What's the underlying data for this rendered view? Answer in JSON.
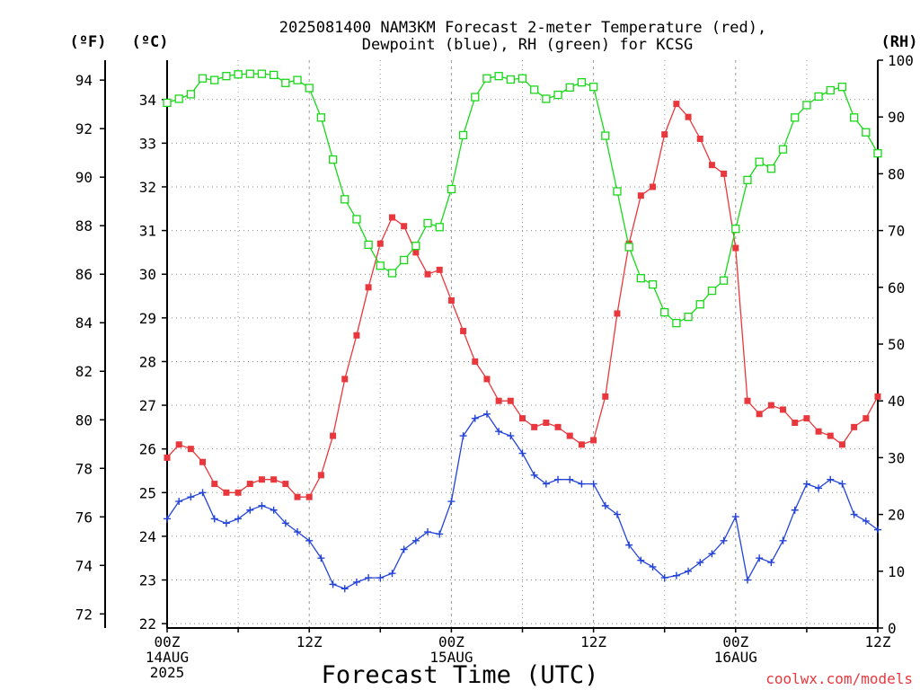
{
  "chart_data": {
    "type": "line",
    "title_line1": "2025081400 NAM3KM Forecast 2-meter Temperature (red),",
    "title_line2": "Dewpoint (blue), RH (green) for KCSG",
    "xlabel": "Forecast Time (UTC)",
    "ylabel_left_f": "(ºF)",
    "ylabel_left_c": "(ºC)",
    "ylabel_right": "(RH)",
    "credit": "coolwx.com/models",
    "x_hours": [
      0,
      1,
      2,
      3,
      4,
      5,
      6,
      7,
      8,
      9,
      10,
      11,
      12,
      13,
      14,
      15,
      16,
      17,
      18,
      19,
      20,
      21,
      22,
      23,
      24,
      25,
      26,
      27,
      28,
      29,
      30,
      31,
      32,
      33,
      34,
      35,
      36,
      37,
      38,
      39,
      40,
      41,
      42,
      43,
      44,
      45,
      46,
      47,
      48,
      49,
      50,
      51,
      52,
      53,
      54,
      55,
      56,
      57,
      58,
      59,
      60
    ],
    "xlim": [
      0,
      60
    ],
    "x_ticks": [
      {
        "hour": 0,
        "lines": [
          "00Z",
          "14AUG",
          "2025"
        ]
      },
      {
        "hour": 12,
        "lines": [
          "12Z"
        ]
      },
      {
        "hour": 24,
        "lines": [
          "00Z",
          "15AUG"
        ]
      },
      {
        "hour": 36,
        "lines": [
          "12Z"
        ]
      },
      {
        "hour": 48,
        "lines": [
          "00Z",
          "16AUG"
        ]
      },
      {
        "hour": 60,
        "lines": [
          "12Z"
        ]
      }
    ],
    "y_c_ticks": [
      "22",
      "23",
      "24",
      "25",
      "26",
      "27",
      "28",
      "29",
      "30",
      "31",
      "32",
      "33",
      "34"
    ],
    "ylim_c": [
      21.9,
      34.9
    ],
    "y_f_ticks": [
      "72",
      "74",
      "76",
      "78",
      "80",
      "82",
      "84",
      "86",
      "88",
      "90",
      "92",
      "94"
    ],
    "y_rh_ticks": [
      "0",
      "10",
      "20",
      "30",
      "40",
      "50",
      "60",
      "70",
      "80",
      "90",
      "100"
    ],
    "ylim_rh": [
      0,
      100
    ],
    "series": [
      {
        "name": "2-meter Temperature",
        "color": "#e8383d",
        "marker": "filled-square",
        "axis": "celsius",
        "values": [
          25.8,
          26.1,
          26.0,
          25.7,
          25.2,
          25.0,
          25.0,
          25.2,
          25.3,
          25.3,
          25.2,
          24.9,
          24.9,
          25.4,
          26.3,
          27.6,
          28.6,
          29.7,
          30.7,
          31.3,
          31.1,
          30.5,
          30.0,
          30.1,
          29.4,
          28.7,
          28.0,
          27.6,
          27.1,
          27.1,
          26.7,
          26.5,
          26.6,
          26.5,
          26.3,
          26.1,
          26.2,
          27.2,
          29.1,
          30.7,
          31.8,
          32.0,
          33.2,
          33.9,
          33.6,
          33.1,
          32.5,
          32.3,
          30.6,
          27.1,
          26.8,
          27.0,
          26.9,
          26.6,
          26.7,
          26.4,
          26.3,
          26.1,
          26.5,
          26.7,
          27.2
        ]
      },
      {
        "name": "Dewpoint",
        "color": "#2343d8",
        "marker": "plus",
        "axis": "celsius",
        "values": [
          24.4,
          24.8,
          24.9,
          25.0,
          24.4,
          24.3,
          24.4,
          24.6,
          24.7,
          24.6,
          24.3,
          24.1,
          23.9,
          23.5,
          22.9,
          22.8,
          22.95,
          23.05,
          23.05,
          23.15,
          23.7,
          23.9,
          24.1,
          24.05,
          24.8,
          26.3,
          26.7,
          26.8,
          26.4,
          26.3,
          25.9,
          25.4,
          25.2,
          25.3,
          25.3,
          25.2,
          25.2,
          24.7,
          24.5,
          23.8,
          23.45,
          23.3,
          23.05,
          23.1,
          23.2,
          23.4,
          23.6,
          23.9,
          24.45,
          23.0,
          23.5,
          23.4,
          23.9,
          24.6,
          25.2,
          25.1,
          25.3,
          25.2,
          24.5,
          24.35,
          24.15
        ]
      },
      {
        "name": "RH",
        "color": "#18d818",
        "marker": "open-square",
        "axis": "rh",
        "values": [
          92.5,
          93.2,
          94.0,
          96.8,
          96.5,
          97.2,
          97.5,
          97.6,
          97.6,
          97.4,
          96.0,
          96.5,
          95.1,
          89.9,
          82.5,
          75.5,
          72.0,
          67.5,
          63.8,
          62.5,
          64.8,
          67.3,
          71.3,
          70.6,
          77.3,
          86.8,
          93.5,
          96.8,
          97.2,
          96.6,
          96.8,
          94.8,
          93.2,
          93.9,
          95.2,
          96.1,
          95.3,
          86.7,
          76.9,
          67.1,
          61.6,
          60.5,
          55.6,
          53.7,
          54.8,
          57.0,
          59.4,
          61.2,
          70.3,
          78.9,
          82.1,
          80.9,
          84.3,
          89.9,
          92.1,
          93.6,
          94.7,
          95.3,
          89.9,
          87.3,
          83.6
        ]
      }
    ]
  }
}
